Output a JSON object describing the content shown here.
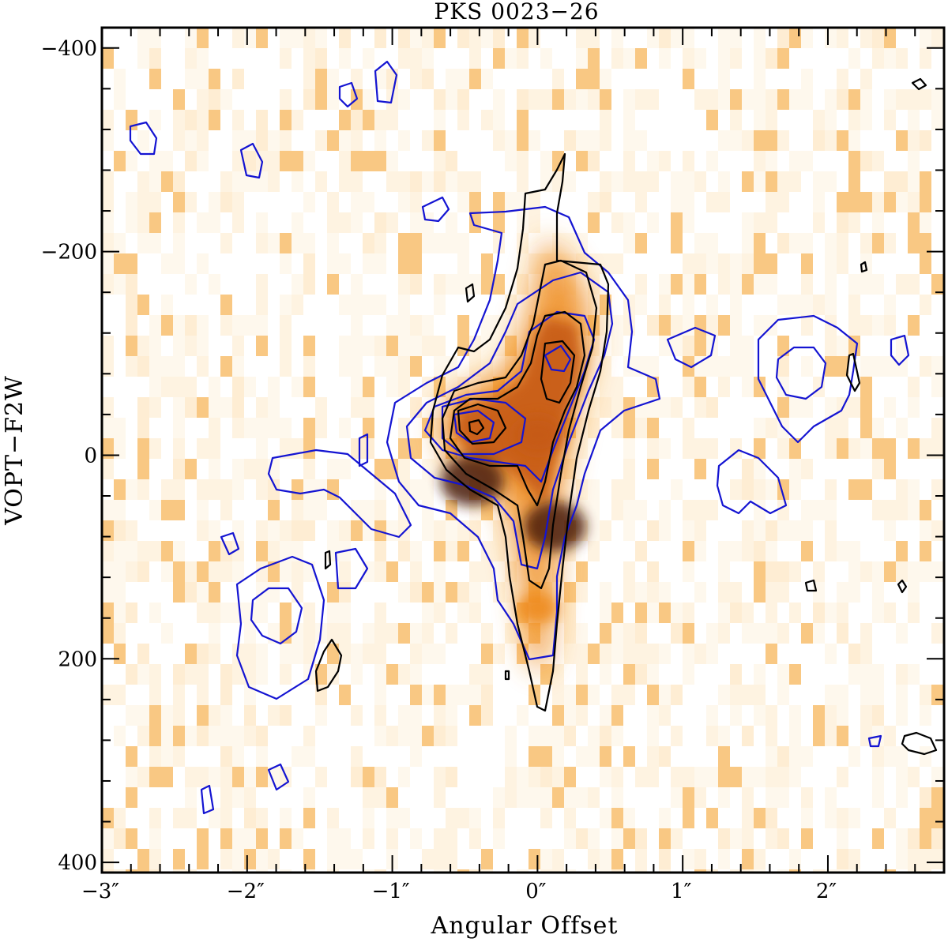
{
  "chart_data": {
    "type": "heatmap",
    "title": "PKS 0023−26",
    "xlabel": "Angular Offset",
    "ylabel": "VOPT−F2W",
    "xlim": [
      -3.0,
      2.8
    ],
    "ylim": [
      -420,
      410
    ],
    "y_inverted": true,
    "x_major_ticks": [
      -3,
      -2,
      -1,
      0,
      1,
      2
    ],
    "x_tick_labels": [
      "−3″",
      "−2″",
      "−1″",
      "0″",
      "1″",
      "2″"
    ],
    "y_major_ticks": [
      -400,
      -200,
      0,
      200,
      400
    ],
    "y_tick_labels": [
      "−400",
      "−200",
      "0",
      "200",
      "400"
    ],
    "colormap": [
      "#ffffff",
      "#fde7c4",
      "#f7b55a",
      "#ee8a1e",
      "#c65a12",
      "#4a1a08"
    ],
    "grid": false,
    "emission_features": [
      {
        "name": "core",
        "x": -0.45,
        "y": 25,
        "peak": 1.0
      },
      {
        "name": "northern knot",
        "x": 0.12,
        "y": 70,
        "peak": 0.97
      },
      {
        "name": "ridge",
        "x": 0.0,
        "y": -20,
        "peak": 0.6
      },
      {
        "name": "south tail",
        "x": 0.0,
        "y": 150,
        "peak": 0.35
      }
    ],
    "contour_sets": [
      {
        "color": "#1414d2",
        "description": "blue contours"
      },
      {
        "color": "#000000",
        "description": "black contours"
      }
    ]
  }
}
